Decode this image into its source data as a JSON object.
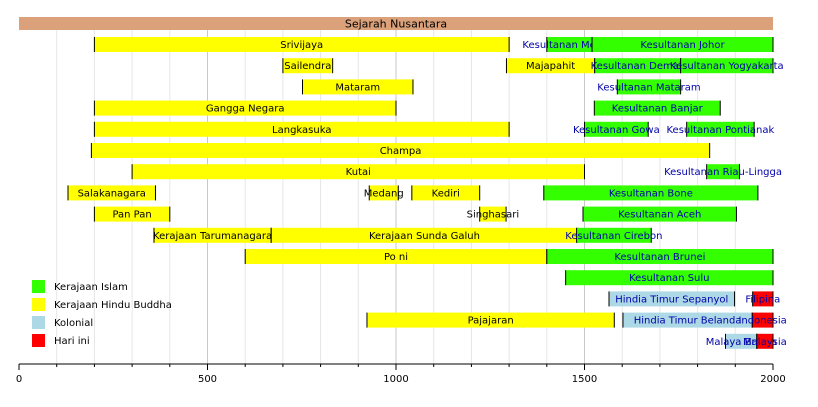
{
  "chart_data": {
    "type": "timeline",
    "title": "Sejarah Nusantara",
    "xlim": [
      0,
      2000
    ],
    "xticks": [
      0,
      500,
      1000,
      1500,
      2000
    ],
    "grid_step": 100,
    "colors": {
      "islam": "#33ff00",
      "hindu": "#ffff00",
      "colonial": "#add8e6",
      "today": "#ff0000",
      "title_bar": "#dba17a"
    },
    "legend": [
      {
        "label": "Kerajaan Islam",
        "cat": "islam"
      },
      {
        "label": "Kerajaan Hindu Buddha",
        "cat": "hindu"
      },
      {
        "label": "Kolonial",
        "cat": "colonial"
      },
      {
        "label": "Hari ini",
        "cat": "today"
      }
    ],
    "rows": [
      [
        {
          "label": "Srivijaya",
          "start": 200,
          "end": 1300,
          "cat": "hindu"
        },
        {
          "label": "Kesultanan Melaka",
          "start": 1400,
          "end": 1520,
          "cat": "islam"
        },
        {
          "label": "Kesultanan Johor",
          "start": 1520,
          "end": 2000,
          "cat": "islam"
        }
      ],
      [
        {
          "label": "Sailendra",
          "start": 700,
          "end": 832,
          "cat": "hindu"
        },
        {
          "label": "Majapahit",
          "start": 1293,
          "end": 1527,
          "cat": "hindu"
        },
        {
          "label": "Kesultanan Demak",
          "start": 1527,
          "end": 1755,
          "cat": "islam"
        },
        {
          "label": "Kesultanan Yogyakarta",
          "start": 1755,
          "end": 2000,
          "cat": "islam"
        }
      ],
      [
        {
          "label": "Mataram",
          "start": 752,
          "end": 1045,
          "cat": "hindu"
        },
        {
          "label": "Kesultanan Mataram",
          "start": 1587,
          "end": 1755,
          "cat": "islam"
        }
      ],
      [
        {
          "label": "Gangga Negara",
          "start": 200,
          "end": 1000,
          "cat": "hindu"
        },
        {
          "label": "Kesultanan Banjar",
          "start": 1526,
          "end": 1860,
          "cat": "islam"
        }
      ],
      [
        {
          "label": "Langkasuka",
          "start": 200,
          "end": 1300,
          "cat": "hindu"
        },
        {
          "label": "Kesultanan Gowa",
          "start": 1500,
          "end": 1669,
          "cat": "islam"
        },
        {
          "label": "Kesultanan Pontianak",
          "start": 1771,
          "end": 1950,
          "cat": "islam"
        }
      ],
      [
        {
          "label": "Champa",
          "start": 192,
          "end": 1832,
          "cat": "hindu"
        }
      ],
      [
        {
          "label": "Kutai",
          "start": 300,
          "end": 1500,
          "cat": "hindu"
        },
        {
          "label": "Kesultanan Riau-Lingga",
          "start": 1824,
          "end": 1911,
          "cat": "islam"
        }
      ],
      [
        {
          "label": "Salakanagara",
          "start": 130,
          "end": 362,
          "cat": "hindu"
        },
        {
          "label": "Medang",
          "start": 929,
          "end": 1006,
          "cat": "hindu"
        },
        {
          "label": "Kediri",
          "start": 1042,
          "end": 1222,
          "cat": "hindu"
        },
        {
          "label": "Kesultanan Bone",
          "start": 1392,
          "end": 1960,
          "cat": "islam"
        }
      ],
      [
        {
          "label": "Pan Pan",
          "start": 200,
          "end": 400,
          "cat": "hindu"
        },
        {
          "label": "Singhasari",
          "start": 1222,
          "end": 1292,
          "cat": "hindu"
        },
        {
          "label": "Kesultanan Aceh",
          "start": 1496,
          "end": 1903,
          "cat": "islam"
        }
      ],
      [
        {
          "label": "Kerajaan Tarumanagara",
          "start": 358,
          "end": 669,
          "cat": "hindu"
        },
        {
          "label": "Kerajaan Sunda Galuh",
          "start": 669,
          "end": 1482,
          "cat": "hindu"
        },
        {
          "label": "Kesultanan Cirebon",
          "start": 1479,
          "end": 1677,
          "cat": "islam"
        }
      ],
      [
        {
          "label": "Po ni",
          "start": 600,
          "end": 1400,
          "cat": "hindu"
        },
        {
          "label": "Kesultanan Brunei",
          "start": 1400,
          "end": 2000,
          "cat": "islam"
        }
      ],
      [
        {
          "label": "Kesultanan Sulu",
          "start": 1450,
          "end": 2000,
          "cat": "islam"
        }
      ],
      [
        {
          "label": "Hindia Timur Sepanyol",
          "start": 1565,
          "end": 1898,
          "cat": "colonial"
        },
        {
          "label": "Filipina",
          "start": 1946,
          "end": 2000,
          "cat": "today"
        }
      ],
      [
        {
          "label": "Pajajaran",
          "start": 923,
          "end": 1579,
          "cat": "hindu"
        },
        {
          "label": "Hindia Timur Belanda",
          "start": 1602,
          "end": 1945,
          "cat": "colonial"
        },
        {
          "label": "Indonesia",
          "start": 1945,
          "end": 2000,
          "cat": "today"
        }
      ],
      [
        {
          "label": "Malaya British",
          "start": 1874,
          "end": 1957,
          "cat": "colonial"
        },
        {
          "label": "Malaysia",
          "start": 1957,
          "end": 2000,
          "cat": "today"
        }
      ]
    ]
  }
}
